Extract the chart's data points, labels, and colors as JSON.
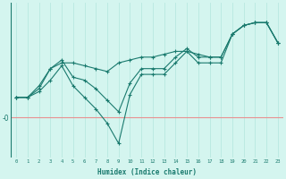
{
  "xlabel": "Humidex (Indice chaleur)",
  "bg_color": "#d4f5ef",
  "line_color": "#1a7a6e",
  "grid_color": "#b8e8e0",
  "zero_line_color": "#e89090",
  "x_ticks": [
    0,
    1,
    2,
    3,
    4,
    5,
    6,
    7,
    8,
    9,
    10,
    11,
    12,
    13,
    14,
    15,
    16,
    17,
    18,
    19,
    20,
    21,
    22,
    23
  ],
  "series1_x": [
    0,
    1,
    2,
    3,
    4,
    5,
    6,
    7,
    8,
    9,
    10,
    11,
    12,
    13,
    14,
    15,
    16,
    17,
    18,
    19,
    20,
    21,
    22,
    23
  ],
  "series1_y": [
    3.5,
    3.5,
    5.5,
    8.5,
    9.5,
    9.5,
    9.0,
    8.5,
    8.0,
    9.5,
    10.0,
    10.5,
    10.5,
    11.0,
    11.5,
    11.5,
    11.0,
    10.5,
    10.5,
    14.5,
    16.0,
    16.5,
    16.5,
    13.0
  ],
  "series2_x": [
    0,
    1,
    2,
    3,
    4,
    5,
    6,
    7,
    8,
    9,
    10,
    11,
    12,
    13,
    14,
    15,
    16,
    17,
    18,
    19,
    20,
    21,
    22,
    23
  ],
  "series2_y": [
    3.5,
    3.5,
    5.0,
    8.5,
    10.0,
    7.0,
    6.5,
    5.0,
    3.0,
    1.0,
    6.0,
    8.5,
    8.5,
    8.5,
    10.5,
    12.0,
    10.5,
    10.5,
    10.5,
    14.5,
    16.0,
    16.5,
    16.5,
    13.0
  ],
  "series3_x": [
    0,
    1,
    2,
    3,
    4,
    5,
    6,
    7,
    8,
    9,
    10,
    11,
    12,
    13,
    14,
    15,
    16,
    17,
    18,
    19,
    20,
    21,
    22,
    23
  ],
  "series3_y": [
    3.5,
    3.5,
    4.5,
    6.5,
    9.0,
    5.5,
    3.5,
    1.5,
    -1.0,
    -4.5,
    4.0,
    7.5,
    7.5,
    7.5,
    9.5,
    11.5,
    9.5,
    9.5,
    9.5,
    14.5,
    16.0,
    16.5,
    16.5,
    13.0
  ],
  "ylim": [
    -7,
    20
  ],
  "zero_y": 0
}
